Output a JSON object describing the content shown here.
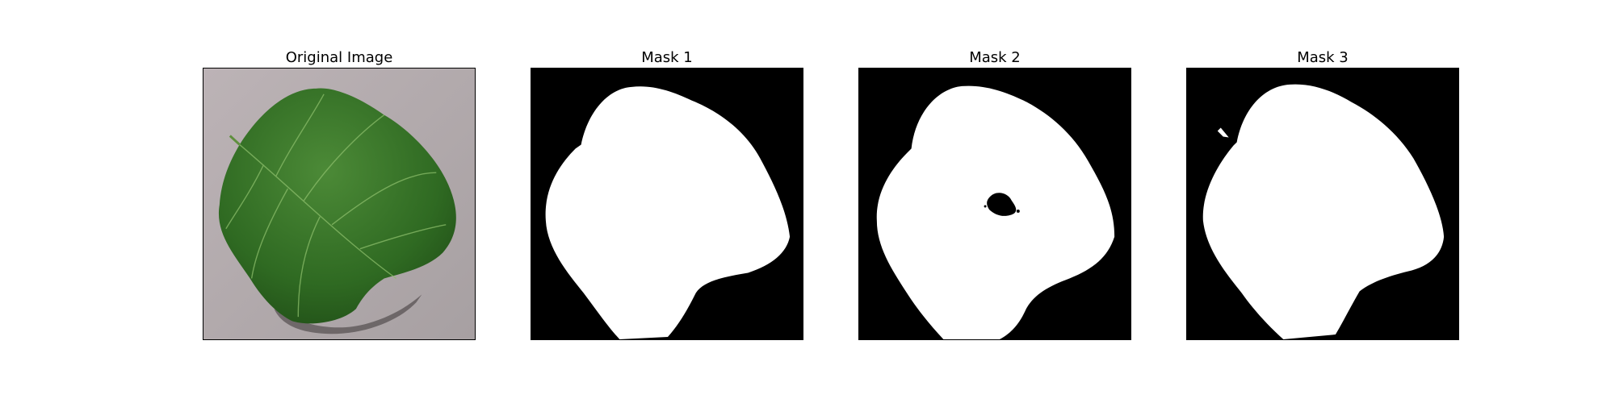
{
  "figure": {
    "panels": [
      {
        "title": "Original Image",
        "kind": "photo",
        "subject": "green serrated leaf on grey surface"
      },
      {
        "title": "Mask 1",
        "kind": "binary-mask"
      },
      {
        "title": "Mask 2",
        "kind": "binary-mask",
        "note": "small hole near center"
      },
      {
        "title": "Mask 3",
        "kind": "binary-mask"
      }
    ]
  },
  "colors": {
    "background": "#ffffff",
    "mask_foreground": "#ffffff",
    "mask_background": "#000000",
    "leaf_green": "#2f6a22",
    "surface_grey": "#b3aaae"
  }
}
